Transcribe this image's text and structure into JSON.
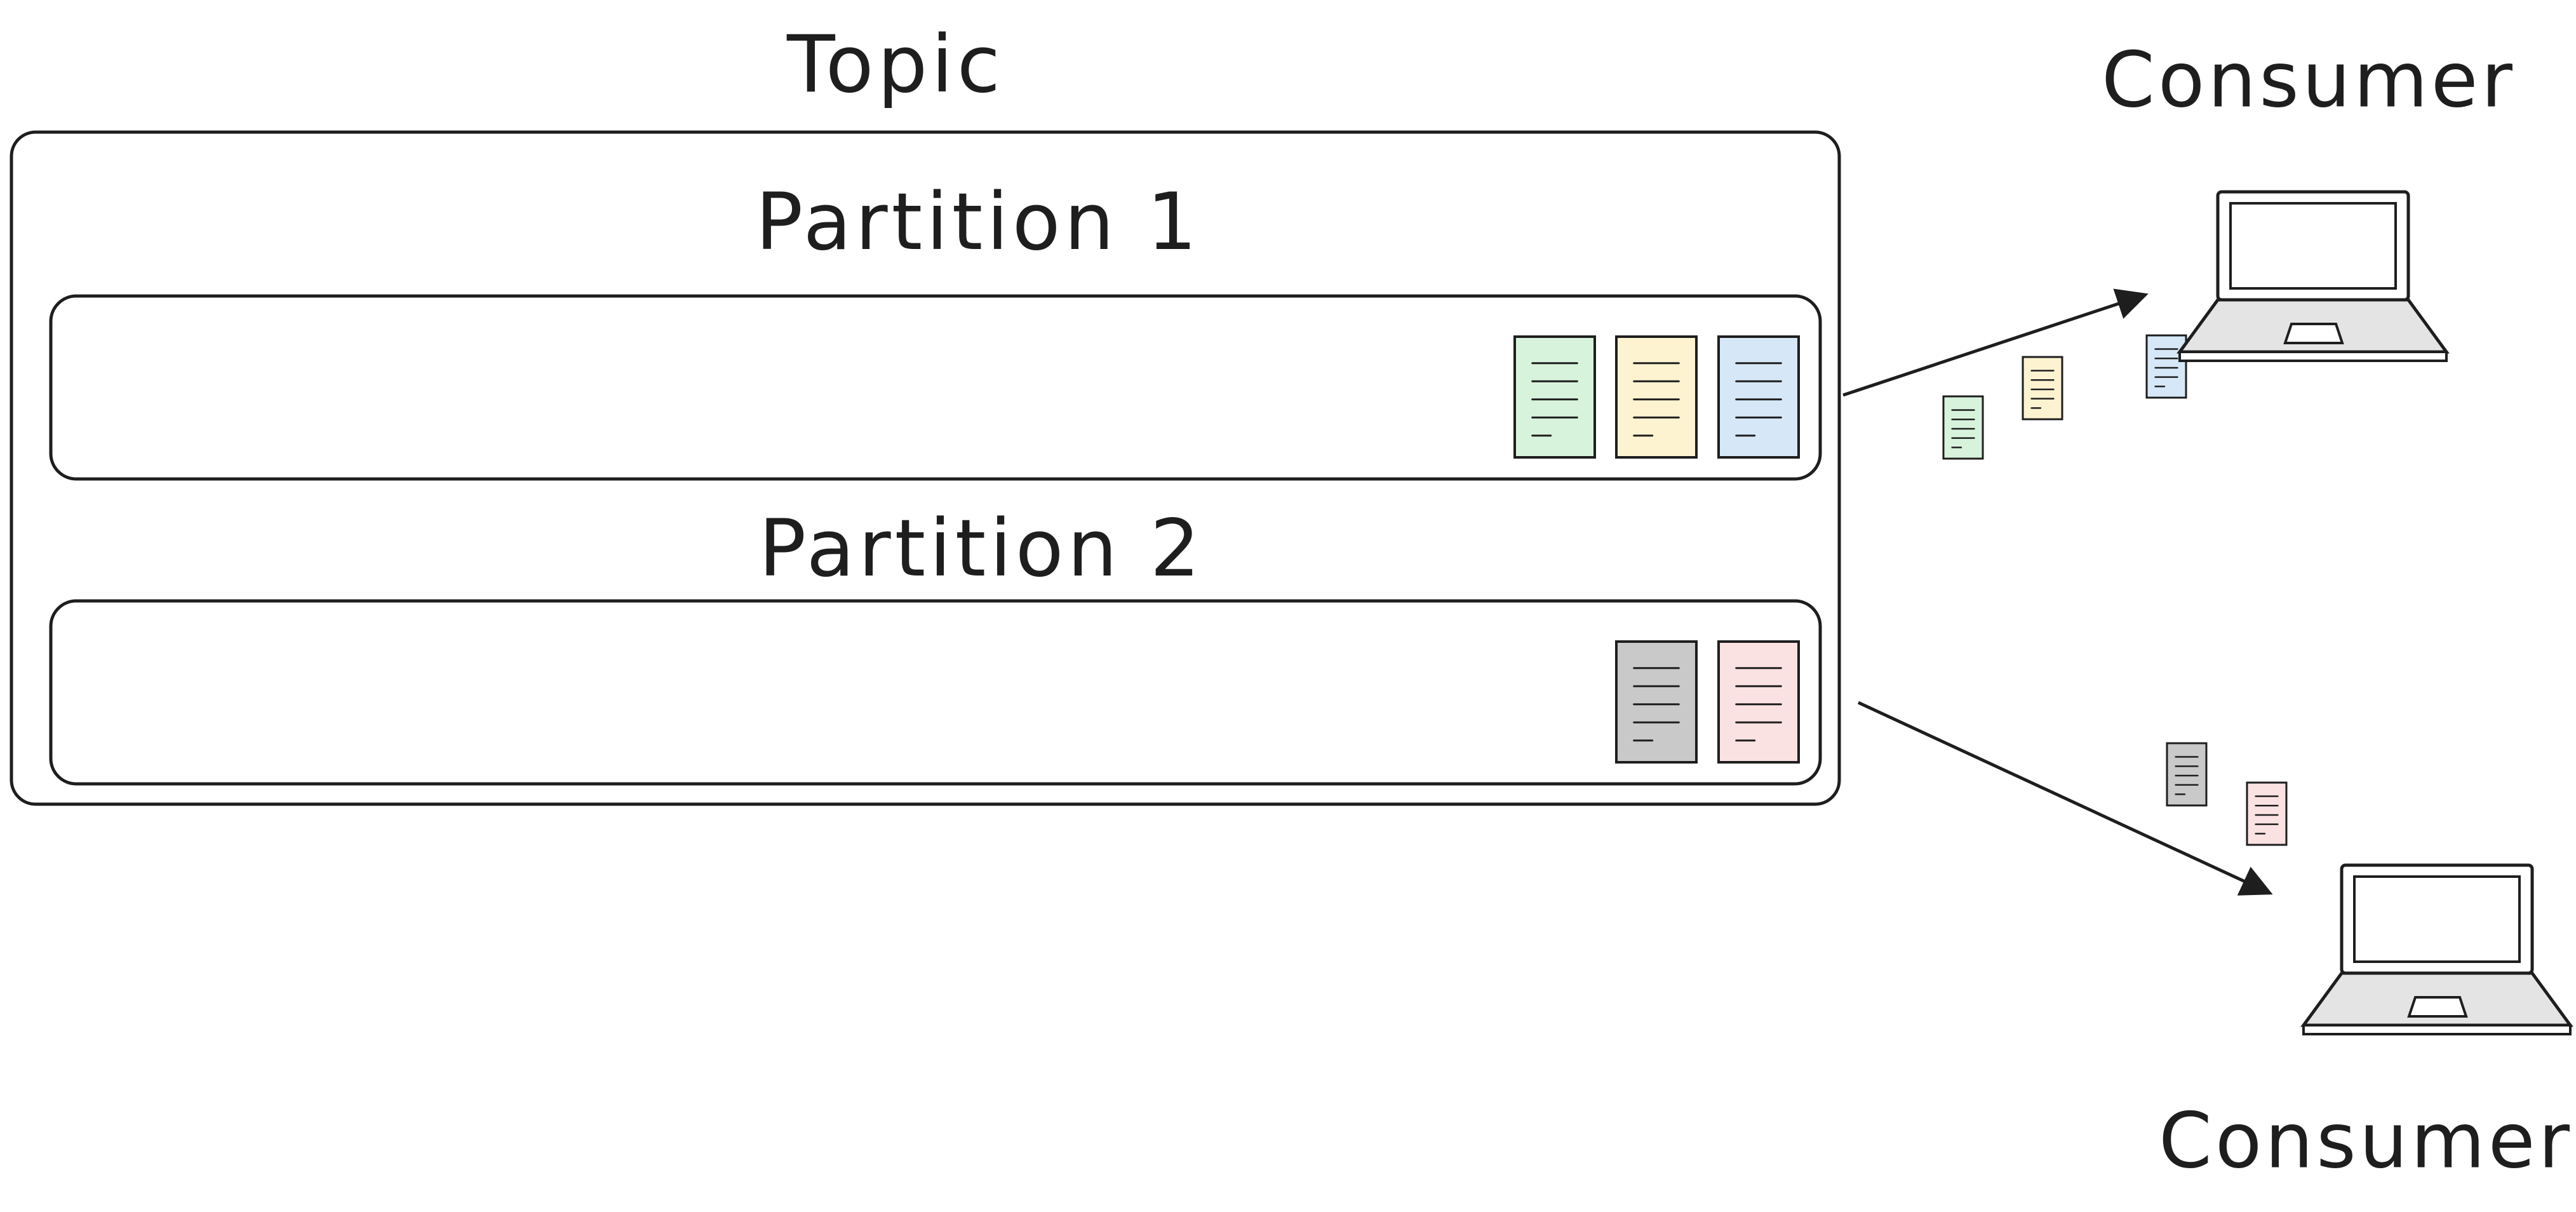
{
  "diagram": {
    "topic": {
      "label": "Topic"
    },
    "partitions": [
      {
        "label": "Partition 1",
        "messages": [
          "green",
          "yellow",
          "blue"
        ]
      },
      {
        "label": "Partition 2",
        "messages": [
          "gray",
          "pink"
        ]
      }
    ],
    "consumers": [
      {
        "label": "Consumer",
        "receives": [
          "green",
          "yellow",
          "blue"
        ]
      },
      {
        "label": "Consumer",
        "receives": [
          "gray",
          "pink"
        ]
      }
    ],
    "message_colors": {
      "green": "#d8f3dc",
      "yellow": "#fdf3d0",
      "blue": "#d6e8f7",
      "gray": "#c9c9c9",
      "pink": "#fbe2e2"
    },
    "stroke_color": "#1e1e1e"
  }
}
